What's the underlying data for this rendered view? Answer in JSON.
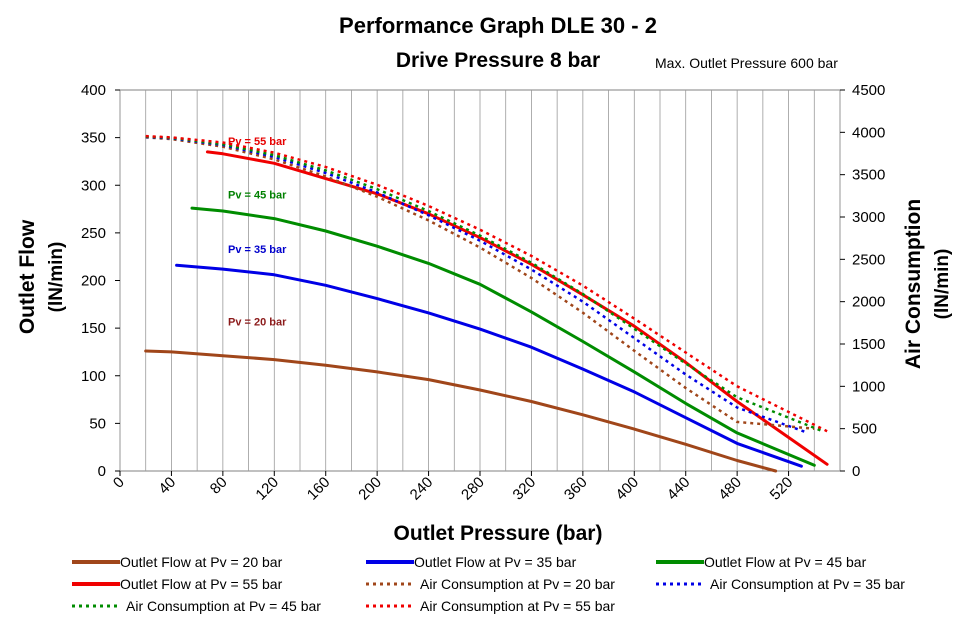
{
  "chart_data": {
    "type": "line",
    "title": "Performance Graph DLE 30 - 2",
    "subtitle": "Drive Pressure 8 bar",
    "note": "Max. Outlet Pressure 600 bar",
    "xlabel": "Outlet Pressure (bar)",
    "ylabel_left": [
      "Outlet Flow",
      "(lN/min)"
    ],
    "ylabel_right": [
      "Air Consumption",
      "(lN/min)"
    ],
    "xlim": [
      0,
      560
    ],
    "ylim_left": [
      0,
      400
    ],
    "ylim_right": [
      0,
      4500
    ],
    "x_ticks": [
      0,
      40,
      80,
      120,
      160,
      200,
      240,
      280,
      320,
      360,
      400,
      440,
      480,
      520
    ],
    "y_left_ticks": [
      0,
      50,
      100,
      150,
      200,
      250,
      300,
      350,
      400
    ],
    "y_right_ticks": [
      0,
      500,
      1000,
      1500,
      2000,
      2500,
      3000,
      3500,
      4000,
      4500
    ],
    "grid": true,
    "legend_position": "bottom",
    "series_labels": [
      {
        "text": "Pv = 55 bar",
        "color": "#e60000",
        "x": 84,
        "y": 342
      },
      {
        "text": "Pv = 45 bar",
        "color": "#008000",
        "x": 84,
        "y": 286
      },
      {
        "text": "Pv = 35 bar",
        "color": "#0000cc",
        "x": 84,
        "y": 229
      },
      {
        "text": "Pv = 20 bar",
        "color": "#8b1a1a",
        "x": 84,
        "y": 153
      }
    ],
    "series": [
      {
        "name": "Outlet Flow at Pv = 20 bar",
        "axis": "left",
        "style": "solid",
        "color": "#a0461a",
        "x": [
          20,
          40,
          80,
          120,
          160,
          200,
          240,
          280,
          320,
          360,
          400,
          440,
          480,
          510
        ],
        "y": [
          126,
          125,
          121,
          117,
          111,
          104,
          96,
          85,
          73,
          59,
          44,
          28,
          11,
          0
        ]
      },
      {
        "name": "Outlet Flow at Pv = 35 bar",
        "axis": "left",
        "style": "solid",
        "color": "#0000e6",
        "x": [
          44,
          80,
          120,
          160,
          200,
          240,
          280,
          320,
          360,
          400,
          440,
          480,
          530
        ],
        "y": [
          216,
          212,
          206,
          195,
          181,
          166,
          149,
          130,
          107,
          83,
          56,
          29,
          5
        ]
      },
      {
        "name": "Outlet Flow at Pv = 45 bar",
        "axis": "left",
        "style": "solid",
        "color": "#008c00",
        "x": [
          56,
          80,
          120,
          160,
          200,
          240,
          280,
          320,
          360,
          400,
          440,
          480,
          540
        ],
        "y": [
          276,
          273,
          265,
          252,
          236,
          218,
          196,
          167,
          136,
          104,
          71,
          40,
          6
        ]
      },
      {
        "name": "Outlet Flow at Pv = 55 bar",
        "axis": "left",
        "style": "solid",
        "color": "#f00000",
        "x": [
          68,
          80,
          120,
          160,
          200,
          240,
          280,
          320,
          360,
          400,
          440,
          480,
          550
        ],
        "y": [
          335,
          333,
          323,
          307,
          291,
          270,
          245,
          217,
          185,
          152,
          114,
          73,
          7
        ]
      },
      {
        "name": "Air Consumption at Pv = 20 bar",
        "axis": "right",
        "style": "dotted",
        "color": "#a0461a",
        "x": [
          20,
          40,
          80,
          120,
          160,
          200,
          240,
          280,
          320,
          360,
          400,
          440,
          480,
          540
        ],
        "y": [
          3940,
          3920,
          3830,
          3680,
          3480,
          3240,
          2960,
          2640,
          2280,
          1870,
          1420,
          980,
          580,
          500
        ]
      },
      {
        "name": "Air Consumption at Pv = 35 bar",
        "axis": "right",
        "style": "dotted",
        "color": "#0000e6",
        "x": [
          20,
          40,
          80,
          120,
          160,
          200,
          240,
          280,
          320,
          360,
          400,
          440,
          480,
          535
        ],
        "y": [
          3945,
          3930,
          3850,
          3710,
          3520,
          3290,
          3020,
          2720,
          2380,
          2000,
          1570,
          1140,
          750,
          450
        ]
      },
      {
        "name": "Air Consumption at Pv = 45 bar",
        "axis": "right",
        "style": "dotted",
        "color": "#008c00",
        "x": [
          20,
          40,
          80,
          120,
          160,
          200,
          240,
          280,
          320,
          360,
          400,
          440,
          480,
          545
        ],
        "y": [
          3950,
          3935,
          3860,
          3730,
          3550,
          3330,
          3070,
          2780,
          2460,
          2090,
          1680,
          1270,
          870,
          480
        ]
      },
      {
        "name": "Air Consumption at Pv = 55 bar",
        "axis": "right",
        "style": "dotted",
        "color": "#f00000",
        "x": [
          20,
          40,
          80,
          120,
          160,
          200,
          240,
          280,
          320,
          360,
          400,
          440,
          480,
          550
        ],
        "y": [
          3955,
          3940,
          3880,
          3760,
          3590,
          3380,
          3130,
          2850,
          2540,
          2190,
          1800,
          1400,
          1000,
          470
        ]
      }
    ],
    "legend": [
      {
        "text": "Outlet Flow at Pv = 20 bar",
        "series": 0
      },
      {
        "text": "Outlet Flow at Pv = 35 bar",
        "series": 1
      },
      {
        "text": "Outlet Flow at Pv = 45 bar",
        "series": 2
      },
      {
        "text": "Outlet Flow at Pv = 55 bar",
        "series": 3
      },
      {
        "text": "Air Consumption at Pv = 20 bar",
        "series": 4
      },
      {
        "text": "Air Consumption at Pv = 35 bar",
        "series": 5
      },
      {
        "text": "Air Consumption at Pv = 45 bar",
        "series": 6
      },
      {
        "text": "Air Consumption at Pv = 55 bar",
        "series": 7
      }
    ]
  }
}
